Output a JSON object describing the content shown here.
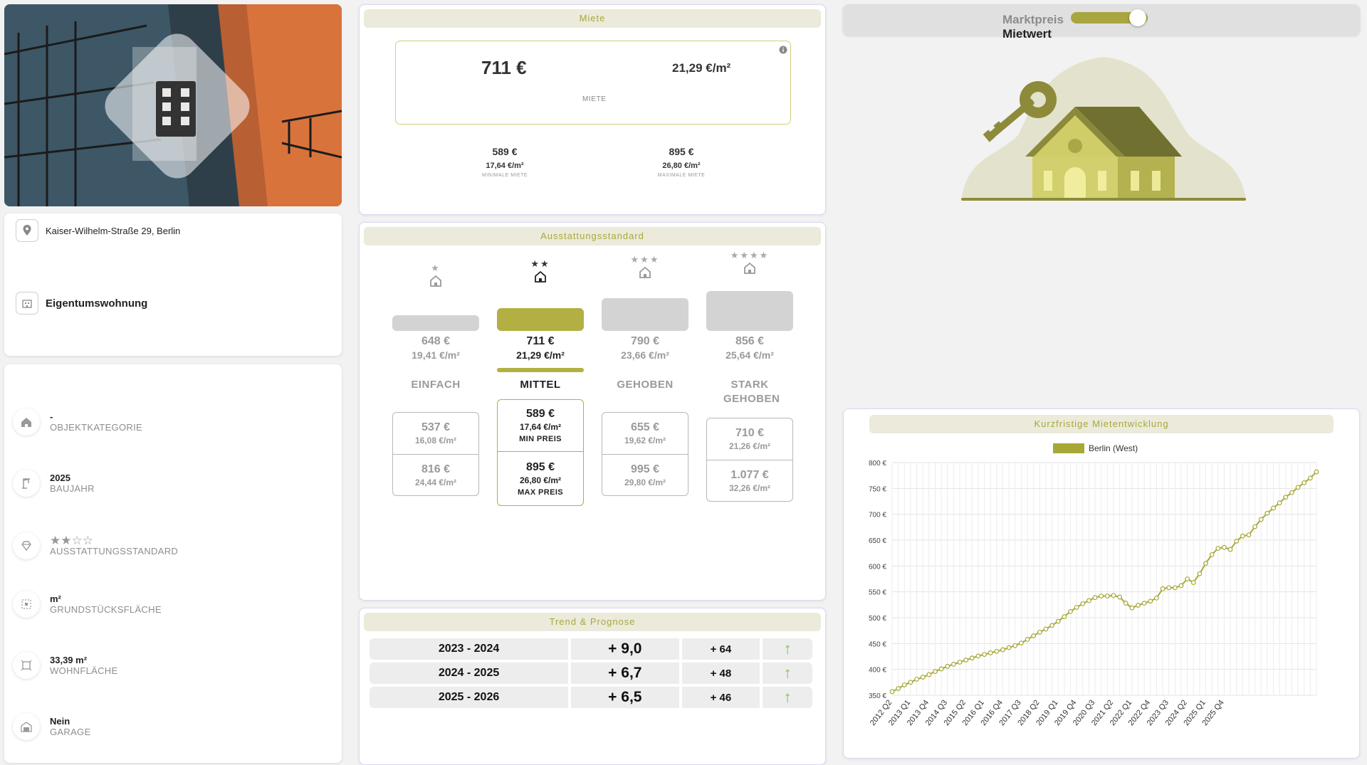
{
  "address": "Kaiser-Wilhelm-Straße 29, Berlin",
  "property_type": "Eigentumswohnung",
  "details": [
    {
      "icon": "home-icon",
      "value": "-",
      "label": "OBJEKTKATEGORIE"
    },
    {
      "icon": "crane-icon",
      "value": "2025",
      "label": "BAUJAHR"
    },
    {
      "icon": "diamond-icon",
      "value": "★★☆☆",
      "label": "AUSSTATTUNGSSTANDARD"
    },
    {
      "icon": "plot-icon",
      "value": "m²",
      "label": "GRUNDSTÜCKSFLÄCHE"
    },
    {
      "icon": "area-icon",
      "value": "33,39 m²",
      "label": "WOHNFLÄCHE"
    },
    {
      "icon": "garage-icon",
      "value": "Nein",
      "label": "GARAGE"
    }
  ],
  "miete": {
    "title": "Miete",
    "price": "711 €",
    "price_sqm": "21,29 €/m²",
    "label": "MIETE",
    "min": {
      "price": "589 €",
      "sqm": "17,64 €/m²",
      "label": "MINIMALE MIETE"
    },
    "max": {
      "price": "895 €",
      "sqm": "26,80 €/m²",
      "label": "MAXIMALE MIETE"
    }
  },
  "ausstattung": {
    "title": "Ausstattungsstandard",
    "columns": [
      {
        "stars": "★",
        "price": "648 €",
        "sqm": "19,41 €/m²",
        "name": "EINFACH",
        "min_price": "537 €",
        "min_sqm": "16,08 €/m²",
        "max_price": "816 €",
        "max_sqm": "24,44 €/m²",
        "active": false
      },
      {
        "stars": "★★",
        "price": "711 €",
        "sqm": "21,29 €/m²",
        "name": "MITTEL",
        "min_price": "589 €",
        "min_sqm": "17,64 €/m²",
        "min_label": "MIN PREIS",
        "max_price": "895 €",
        "max_sqm": "26,80 €/m²",
        "max_label": "MAX PREIS",
        "active": true
      },
      {
        "stars": "★★★",
        "price": "790 €",
        "sqm": "23,66 €/m²",
        "name": "GEHOBEN",
        "min_price": "655 €",
        "min_sqm": "19,62 €/m²",
        "max_price": "995 €",
        "max_sqm": "29,80 €/m²",
        "active": false
      },
      {
        "stars": "★★★★",
        "price": "856 €",
        "sqm": "25,64 €/m²",
        "name": "STARK GEHOBEN",
        "min_price": "710 €",
        "min_sqm": "21,26 €/m²",
        "max_price": "1.077 €",
        "max_sqm": "32,26 €/m²",
        "active": false
      }
    ]
  },
  "trend": {
    "title": "Trend & Prognose",
    "rows": [
      {
        "period": "2023 - 2024",
        "pct": "+ 9,0",
        "abs": "+ 64",
        "arrow": "↑"
      },
      {
        "period": "2024 - 2025",
        "pct": "+ 6,7",
        "abs": "+ 48",
        "arrow": "↑"
      },
      {
        "period": "2025 - 2026",
        "pct": "+ 6,5",
        "abs": "+ 46",
        "arrow": "↑"
      }
    ]
  },
  "toggle": {
    "label_off": "Marktpreis",
    "label_on": "Mietwert",
    "state": "Mietwert"
  },
  "colors": {
    "accent": "#b2b042",
    "title_bg": "#ebeadb",
    "title_text": "#a8a83a",
    "arrow_green": "#7cc24a"
  },
  "chart_data": {
    "type": "line",
    "title": "Kurzfristige Mietentwicklung",
    "series": [
      {
        "name": "Berlin (West)",
        "values": [
          357,
          363,
          370,
          375,
          381,
          385,
          390,
          396,
          401,
          406,
          410,
          414,
          418,
          422,
          426,
          429,
          432,
          435,
          438,
          442,
          446,
          451,
          458,
          465,
          472,
          478,
          485,
          493,
          502,
          512,
          520,
          527,
          533,
          539,
          542,
          542,
          543,
          540,
          528,
          519,
          524,
          528,
          532,
          538,
          556,
          558,
          558,
          562,
          575,
          568,
          585,
          605,
          622,
          634,
          636,
          632,
          648,
          658,
          660,
          676,
          690,
          702,
          712,
          722,
          733,
          742,
          752,
          761,
          770,
          782
        ]
      }
    ],
    "x_tick_labels": [
      "2012 Q2",
      "2013 Q1",
      "2013 Q4",
      "2014 Q3",
      "2015 Q2",
      "2016 Q1",
      "2016 Q4",
      "2017 Q3",
      "2018 Q2",
      "2019 Q1",
      "2019 Q4",
      "2020 Q3",
      "2021 Q2",
      "2022 Q1",
      "2022 Q4",
      "2023 Q3",
      "2024 Q2",
      "2025 Q1",
      "2025 Q4"
    ],
    "y_tick_labels": [
      "800 €",
      "750 €",
      "700 €",
      "650 €",
      "600 €",
      "550 €",
      "500 €",
      "450 €",
      "400 €",
      "350 €"
    ],
    "ylim": [
      350,
      800
    ],
    "grid": true,
    "legend_position": "top"
  }
}
